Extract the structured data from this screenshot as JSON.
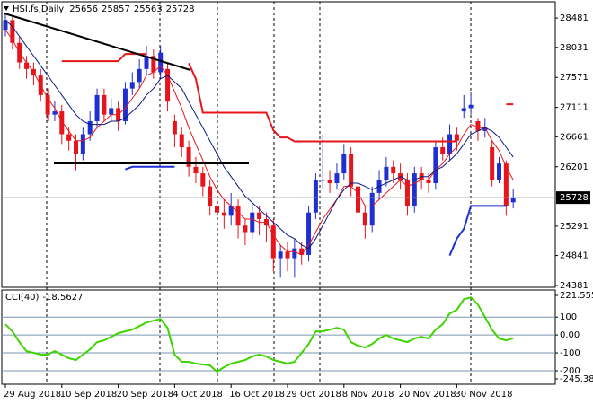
{
  "chart_data": [
    {
      "type": "candlestick",
      "title": "HSI.fs,Daily",
      "categories": [
        "29 Aug 2018",
        null,
        null,
        null,
        null,
        null,
        null,
        null,
        "10 Sep 2018",
        null,
        null,
        null,
        null,
        null,
        null,
        null,
        "20 Sep 2018",
        null,
        null,
        null,
        null,
        null,
        null,
        null,
        "4 Oct 2018",
        null,
        null,
        null,
        null,
        null,
        null,
        null,
        "16 Oct 2018",
        null,
        null,
        null,
        null,
        null,
        null,
        null,
        "29 Oct 2018",
        null,
        null,
        null,
        null,
        null,
        null,
        null,
        "8 Nov 2018",
        null,
        null,
        null,
        null,
        null,
        null,
        null,
        "20 Nov 2018",
        null,
        null,
        null,
        null,
        null,
        null,
        null,
        "30 Nov 2018",
        null,
        null,
        null,
        null,
        null,
        null,
        null,
        null
      ],
      "open": [
        28300,
        28450,
        28100,
        27800,
        27700,
        27600,
        27300,
        27000,
        27050,
        26700,
        26600,
        26400,
        26700,
        26900,
        27300,
        27000,
        27100,
        26900,
        27400,
        27500,
        27700,
        27900,
        27650,
        27700,
        26900,
        26700,
        26500,
        26200,
        26100,
        25900,
        25600,
        25500,
        25450,
        25600,
        25300,
        25200,
        25500,
        25400,
        25300,
        24800,
        24900,
        24800,
        24950,
        24850,
        25500,
        26000,
        26000,
        25950,
        26100,
        26400,
        25900,
        25500,
        25300,
        25800,
        26000,
        26200,
        26100,
        26000,
        25600,
        26100,
        26000,
        25950,
        26500,
        26400,
        26700,
        27050,
        27100,
        26900,
        26750,
        26500,
        26000,
        26250,
        25656
      ],
      "high": [
        28550,
        28500,
        28200,
        27900,
        27800,
        27700,
        27400,
        27200,
        27150,
        26800,
        26700,
        26800,
        27050,
        27400,
        27400,
        27250,
        27200,
        27500,
        27650,
        27850,
        28050,
        28000,
        28050,
        27800,
        27000,
        26800,
        26600,
        26350,
        26200,
        26000,
        25700,
        25700,
        25800,
        25700,
        25400,
        25650,
        25600,
        25500,
        25400,
        25000,
        25050,
        25100,
        25050,
        25600,
        26100,
        26700,
        26150,
        26250,
        26550,
        26500,
        26000,
        25600,
        25900,
        26150,
        26350,
        26300,
        26250,
        26100,
        26200,
        26200,
        26100,
        26600,
        26650,
        26850,
        26800,
        27300,
        27350,
        26950,
        26950,
        26600,
        26350,
        26300,
        25857
      ],
      "low": [
        28200,
        28000,
        27700,
        27550,
        27450,
        27200,
        26900,
        26900,
        26550,
        26450,
        26150,
        26300,
        26600,
        26800,
        26900,
        26900,
        26750,
        26850,
        27300,
        27400,
        27600,
        27550,
        27550,
        27050,
        26500,
        26350,
        26050,
        25950,
        25750,
        25450,
        25100,
        25250,
        25300,
        25100,
        25000,
        25100,
        25150,
        25050,
        24600,
        24500,
        24600,
        24500,
        24700,
        24750,
        25400,
        25850,
        25800,
        25850,
        26000,
        25750,
        25300,
        25100,
        25200,
        25700,
        25900,
        25950,
        25850,
        25450,
        25500,
        25850,
        25800,
        25850,
        26300,
        26300,
        26450,
        26950,
        27000,
        26600,
        26650,
        25900,
        25950,
        25450,
        25563
      ],
      "close": [
        28450,
        28100,
        27800,
        27700,
        27600,
        27300,
        27000,
        27050,
        26700,
        26600,
        26400,
        26700,
        26900,
        27300,
        27000,
        27100,
        26900,
        27400,
        27500,
        27700,
        27900,
        27650,
        27950,
        27200,
        26700,
        26500,
        26200,
        26100,
        25900,
        25600,
        25500,
        25450,
        25600,
        25300,
        25200,
        25500,
        25400,
        25300,
        24800,
        24900,
        24800,
        24950,
        24850,
        25500,
        26000,
        26000,
        25950,
        26100,
        26400,
        25900,
        25500,
        25300,
        25800,
        26000,
        26200,
        26100,
        26000,
        25600,
        26100,
        26000,
        25950,
        26500,
        26400,
        26700,
        26600,
        27100,
        27150,
        26750,
        26800,
        26000,
        26250,
        25600,
        25728
      ],
      "up_color": "#1f2fd0",
      "down_color": "#e8141c",
      "series": [
        {
          "color": "#e8141c",
          "line_width": 1,
          "values": [
            28300,
            28150,
            27950,
            27800,
            27650,
            27450,
            27250,
            27100,
            26900,
            26750,
            26600,
            26600,
            26650,
            26800,
            26900,
            27000,
            27000,
            27100,
            27250,
            27400,
            27600,
            27650,
            27750,
            27600,
            27350,
            27100,
            26800,
            26550,
            26300,
            26050,
            25850,
            25700,
            25600,
            25500,
            25400,
            25400,
            25350,
            25350,
            25150,
            25000,
            24900,
            24900,
            24850,
            25000,
            25200,
            25400,
            25550,
            25700,
            25900,
            25900,
            25800,
            25600,
            25600,
            25700,
            25800,
            25900,
            26000,
            25900,
            25950,
            26000,
            26000,
            26150,
            26250,
            26400,
            26500,
            26700,
            26850,
            26800,
            26800,
            26600,
            26450,
            26200,
            26000
          ]
        },
        {
          "color": "#0a1a80",
          "line_width": 1,
          "values": [
            28450,
            28350,
            28200,
            28050,
            27900,
            27750,
            27600,
            27450,
            27300,
            27150,
            27000,
            26900,
            26850,
            26850,
            26850,
            26900,
            26900,
            26950,
            27050,
            27150,
            27300,
            27400,
            27550,
            27600,
            27500,
            27400,
            27200,
            27000,
            26800,
            26600,
            26400,
            26200,
            26050,
            25900,
            25750,
            25650,
            25550,
            25450,
            25350,
            25250,
            25150,
            25100,
            25000,
            24950,
            25100,
            25300,
            25500,
            25700,
            25850,
            25950,
            25950,
            25900,
            25850,
            25900,
            25950,
            26000,
            26050,
            26000,
            26000,
            26050,
            26050,
            26150,
            26200,
            26300,
            26400,
            26550,
            26700,
            26750,
            26800,
            26750,
            26650,
            26500,
            26350
          ]
        },
        {
          "color": "#e8141c",
          "line_width": 2,
          "values": [
            null,
            null,
            null,
            null,
            null,
            null,
            null,
            null,
            27820,
            27820,
            27820,
            27820,
            27820,
            27820,
            27820,
            27820,
            27820,
            27930,
            27930,
            27930,
            27930,
            null,
            null,
            null,
            null,
            null,
            27790,
            27550,
            27030,
            27030,
            27030,
            27030,
            27030,
            27030,
            27030,
            27030,
            27030,
            27030,
            26760,
            26650,
            26650,
            26590,
            26590,
            26590,
            26590,
            26590,
            26590,
            26590,
            26590,
            26590,
            26590,
            26590,
            26590,
            26590,
            26590,
            26590,
            26590,
            26590,
            26590,
            26590,
            26590,
            26590,
            26590,
            26590,
            26590,
            null,
            null,
            null,
            null,
            null,
            null,
            27160,
            27160
          ]
        },
        {
          "color": "#1f2fd0",
          "line_width": 2,
          "values": [
            null,
            null,
            null,
            null,
            null,
            null,
            null,
            null,
            null,
            null,
            null,
            null,
            null,
            null,
            null,
            null,
            null,
            26160,
            26200,
            26200,
            26200,
            26200,
            26200,
            26200,
            26200,
            null,
            null,
            null,
            null,
            null,
            null,
            null,
            null,
            null,
            null,
            null,
            null,
            null,
            null,
            null,
            null,
            null,
            null,
            null,
            null,
            null,
            null,
            null,
            null,
            null,
            null,
            null,
            null,
            null,
            null,
            null,
            null,
            null,
            null,
            null,
            null,
            null,
            null,
            24840,
            25100,
            25250,
            25600,
            25600,
            25600,
            25600,
            25600,
            25600,
            null
          ]
        }
      ],
      "ylim": [
        24381,
        28730
      ],
      "yticks": [
        28481,
        28031,
        27571,
        27111,
        26661,
        26201,
        25291,
        24841,
        24381
      ]
    },
    {
      "type": "line",
      "title": "CCI(40)",
      "series": [
        {
          "color": "#3fd400",
          "values": [
            60,
            20,
            -40,
            -90,
            -100,
            -110,
            -110,
            -90,
            -110,
            -130,
            -140,
            -110,
            -80,
            -40,
            -30,
            -10,
            10,
            20,
            30,
            50,
            70,
            80,
            90,
            40,
            -110,
            -150,
            -150,
            -160,
            -165,
            -170,
            -205,
            -180,
            -160,
            -150,
            -140,
            -120,
            -110,
            -120,
            -140,
            -150,
            -160,
            -150,
            -100,
            -50,
            20,
            20,
            30,
            40,
            30,
            -40,
            -60,
            -70,
            -50,
            -20,
            0,
            -20,
            -30,
            -40,
            -20,
            -10,
            -20,
            30,
            60,
            120,
            140,
            200,
            210,
            170,
            100,
            30,
            -20,
            -30,
            -18.5627
          ]
        }
      ],
      "ylim": [
        -245.384,
        221.5552
      ],
      "yticks": [
        221.5552,
        100,
        {
          "value": 0,
          "label": "0.00"
        },
        -100,
        -200,
        -245.384
      ]
    }
  ]
}
